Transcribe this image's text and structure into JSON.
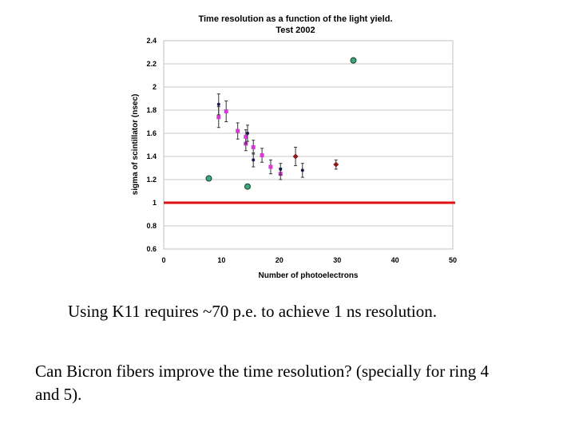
{
  "chart_data": {
    "type": "scatter",
    "title": "Time resolution as a function of the light yield.",
    "subtitle": "Test 2002",
    "xlabel": "Number of photoelectrons",
    "ylabel": "sigma of scintillator (nsec)",
    "xlim": [
      0,
      50
    ],
    "ylim": [
      0.6,
      2.4
    ],
    "xticks": [
      "0",
      "10",
      "20",
      "30",
      "40",
      "50"
    ],
    "yticks": [
      "0.6",
      "0.8",
      "1",
      "1.2",
      "1.4",
      "1.6",
      "1.8",
      "2",
      "2.2",
      "2.4"
    ],
    "grid": true,
    "reference_line": {
      "y": 1.0,
      "color": "#e01010"
    },
    "series": [
      {
        "color": "#d63ad6",
        "marker": "square",
        "points": [
          {
            "x": 9.5,
            "y": 1.74,
            "err": 0.09
          },
          {
            "x": 10.8,
            "y": 1.79,
            "err": 0.09
          },
          {
            "x": 12.8,
            "y": 1.62,
            "err": 0.07
          },
          {
            "x": 14.2,
            "y": 1.51,
            "err": 0.06
          },
          {
            "x": 14.2,
            "y": 1.57,
            "err": 0.06
          },
          {
            "x": 15.5,
            "y": 1.48,
            "err": 0.06
          },
          {
            "x": 17.0,
            "y": 1.41,
            "err": 0.06
          },
          {
            "x": 18.5,
            "y": 1.31,
            "err": 0.06
          },
          {
            "x": 20.2,
            "y": 1.25,
            "err": 0.05
          }
        ]
      },
      {
        "color": "#1a1a4a",
        "marker": "dot",
        "points": [
          {
            "x": 9.5,
            "y": 1.85,
            "err": 0.09
          },
          {
            "x": 14.5,
            "y": 1.6,
            "err": 0.07
          },
          {
            "x": 15.5,
            "y": 1.37,
            "err": 0.06
          },
          {
            "x": 20.2,
            "y": 1.29,
            "err": 0.05
          },
          {
            "x": 24.0,
            "y": 1.28,
            "err": 0.06
          }
        ]
      },
      {
        "color": "#8b1a1a",
        "marker": "diamond",
        "points": [
          {
            "x": 22.8,
            "y": 1.4,
            "err": 0.08
          },
          {
            "x": 29.8,
            "y": 1.33,
            "err": 0.04
          }
        ]
      },
      {
        "color": "#3aa87a",
        "marker": "circle",
        "points": [
          {
            "x": 7.8,
            "y": 1.21
          },
          {
            "x": 14.5,
            "y": 1.14
          },
          {
            "x": 32.8,
            "y": 2.23
          }
        ]
      }
    ]
  },
  "captions": {
    "line1": "Using K11 requires ~70 p.e. to achieve 1 ns resolution.",
    "line2": "Can Bicron fibers improve the time resolution? (specially for ring 4 and 5)."
  }
}
